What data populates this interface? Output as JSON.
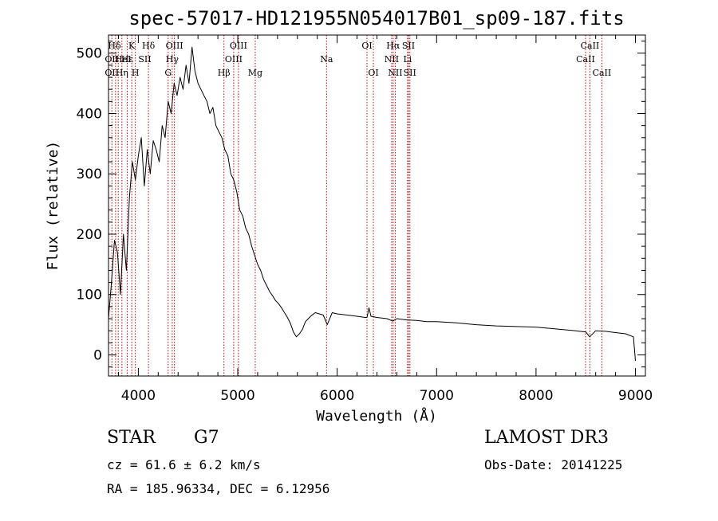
{
  "colors": {
    "axis": "#000000",
    "spectrum": "#000000",
    "line_marker": "#cc0000",
    "background": "#ffffff"
  },
  "chart_data": {
    "type": "line",
    "title": "spec-57017-HD121955N054017B01_sp09-187.fits",
    "xlabel": "Wavelength (Å)",
    "ylabel": "Flux (relative)",
    "xlim": [
      3700,
      9100
    ],
    "ylim": [
      -35,
      530
    ],
    "xticks": [
      4000,
      5000,
      6000,
      7000,
      8000,
      9000
    ],
    "yticks": [
      0,
      100,
      200,
      300,
      400,
      500
    ],
    "x_minor_step": 200,
    "y_minor_step": 20,
    "series": [
      {
        "name": "spectrum",
        "x": [
          3700,
          3730,
          3760,
          3790,
          3820,
          3850,
          3880,
          3910,
          3940,
          3970,
          4000,
          4030,
          4060,
          4090,
          4120,
          4150,
          4180,
          4210,
          4240,
          4270,
          4300,
          4330,
          4360,
          4390,
          4420,
          4450,
          4480,
          4510,
          4540,
          4570,
          4600,
          4630,
          4660,
          4690,
          4720,
          4750,
          4780,
          4810,
          4840,
          4870,
          4900,
          4930,
          4960,
          4990,
          5020,
          5050,
          5080,
          5110,
          5140,
          5170,
          5200,
          5230,
          5260,
          5290,
          5320,
          5350,
          5380,
          5410,
          5440,
          5470,
          5500,
          5530,
          5560,
          5590,
          5620,
          5650,
          5680,
          5710,
          5740,
          5780,
          5820,
          5860,
          5900,
          5950,
          6000,
          6100,
          6200,
          6280,
          6300,
          6320,
          6340,
          6400,
          6500,
          6560,
          6600,
          6700,
          6800,
          6900,
          7000,
          7200,
          7400,
          7600,
          7800,
          8000,
          8200,
          8400,
          8500,
          8540,
          8600,
          8700,
          8800,
          8900,
          8980,
          9000
        ],
        "y": [
          60,
          120,
          190,
          170,
          100,
          200,
          140,
          260,
          320,
          290,
          330,
          360,
          280,
          340,
          300,
          355,
          340,
          320,
          380,
          360,
          420,
          400,
          450,
          430,
          460,
          440,
          480,
          450,
          510,
          470,
          450,
          440,
          430,
          420,
          400,
          410,
          380,
          370,
          360,
          340,
          330,
          300,
          290,
          270,
          240,
          230,
          210,
          200,
          180,
          165,
          150,
          140,
          125,
          115,
          105,
          98,
          90,
          85,
          78,
          70,
          62,
          52,
          38,
          30,
          35,
          42,
          55,
          60,
          65,
          70,
          68,
          66,
          50,
          70,
          68,
          66,
          64,
          62,
          62,
          78,
          64,
          62,
          60,
          56,
          60,
          58,
          57,
          55,
          55,
          53,
          50,
          48,
          47,
          46,
          43,
          40,
          38,
          30,
          40,
          39,
          37,
          35,
          30,
          -10
        ]
      }
    ],
    "line_markers": [
      {
        "wl": 3734,
        "labels": [
          {
            "text": "OII",
            "row": 2
          },
          {
            "text": "OII",
            "row": 3
          }
        ]
      },
      {
        "wl": 3771,
        "labels": []
      },
      {
        "wl": 3798,
        "labels": []
      },
      {
        "wl": 3835,
        "labels": [
          {
            "text": "Hη",
            "row": 3
          }
        ]
      },
      {
        "wl": 3889,
        "labels": [
          {
            "text": "Hε",
            "row": 2
          }
        ]
      },
      {
        "wl": 3934,
        "labels": [
          {
            "text": "K",
            "row": 1
          }
        ]
      },
      {
        "wl": 3970,
        "labels": [
          {
            "text": "H",
            "row": 3
          }
        ]
      },
      {
        "wl": 4102,
        "labels": [
          {
            "text": "Hδ",
            "row": 1
          }
        ]
      },
      {
        "wl": 4300,
        "labels": [
          {
            "text": "G",
            "row": 3
          }
        ]
      },
      {
        "wl": 4341,
        "labels": [
          {
            "text": "Hγ",
            "row": 2
          }
        ]
      },
      {
        "wl": 4363,
        "labels": [
          {
            "text": "OIII",
            "row": 1
          }
        ]
      },
      {
        "wl": 4861,
        "labels": [
          {
            "text": "Hβ",
            "row": 3
          }
        ]
      },
      {
        "wl": 4959,
        "labels": [
          {
            "text": "OIII",
            "row": 2
          }
        ]
      },
      {
        "wl": 5007,
        "labels": [
          {
            "text": "OIII",
            "row": 1
          }
        ]
      },
      {
        "wl": 5176,
        "labels": [
          {
            "text": "Mg",
            "row": 3
          }
        ]
      },
      {
        "wl": 5893,
        "labels": [
          {
            "text": "Na",
            "row": 2
          }
        ]
      },
      {
        "wl": 6300,
        "labels": [
          {
            "text": "OI",
            "row": 1
          }
        ]
      },
      {
        "wl": 6364,
        "labels": [
          {
            "text": "OI",
            "row": 3
          }
        ]
      },
      {
        "wl": 6548,
        "labels": [
          {
            "text": "NII",
            "row": 2
          }
        ]
      },
      {
        "wl": 6563,
        "labels": [
          {
            "text": "Hα",
            "row": 1
          }
        ]
      },
      {
        "wl": 6584,
        "labels": [
          {
            "text": "NII",
            "row": 3
          }
        ]
      },
      {
        "wl": 6708,
        "labels": [
          {
            "text": "Li",
            "row": 2
          }
        ]
      },
      {
        "wl": 6717,
        "labels": [
          {
            "text": "SII",
            "row": 1
          }
        ]
      },
      {
        "wl": 6731,
        "labels": [
          {
            "text": "SII",
            "row": 3
          }
        ]
      },
      {
        "wl": 8498,
        "labels": [
          {
            "text": "CaII",
            "row": 2
          }
        ]
      },
      {
        "wl": 8542,
        "labels": [
          {
            "text": "CaII",
            "row": 1
          }
        ]
      },
      {
        "wl": 8662,
        "labels": [
          {
            "text": "CaII",
            "row": 3
          }
        ]
      }
    ],
    "extra_marker_text": [
      {
        "text": "Hδ",
        "row": 1,
        "near_wl": 3760
      },
      {
        "text": "HeI",
        "row": 2,
        "near_wl": 3845
      },
      {
        "text": "SII",
        "row": 2,
        "near_wl": 4065
      }
    ]
  },
  "info": {
    "object_class": "STAR",
    "subclass": "G7",
    "survey": "LAMOST DR3",
    "redshift_text": "cz = 61.6 ± 6.2 km/s",
    "obs_date_text": "Obs-Date: 20141225",
    "coords_text": "RA = 185.96334, DEC =    6.12956"
  }
}
